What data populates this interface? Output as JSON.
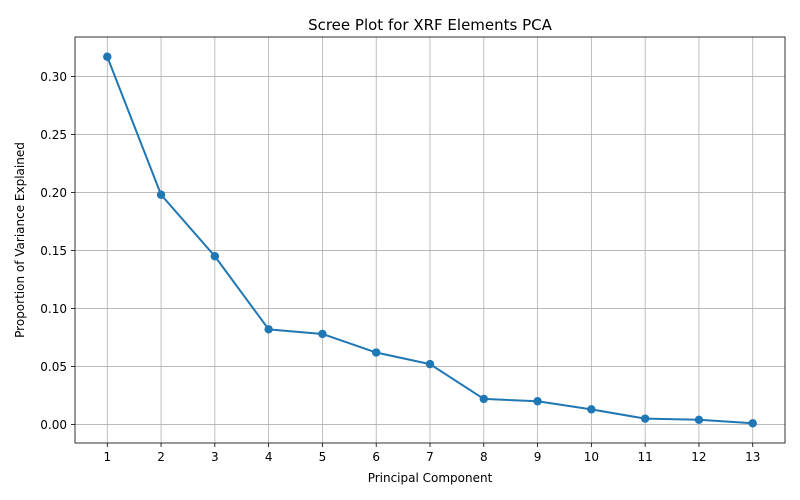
{
  "chart_data": {
    "type": "line",
    "title": "Scree Plot for XRF Elements PCA",
    "xlabel": "Principal Component",
    "ylabel": "Proportion of Variance Explained",
    "x": [
      1,
      2,
      3,
      4,
      5,
      6,
      7,
      8,
      9,
      10,
      11,
      12,
      13
    ],
    "series": [
      {
        "values": [
          0.317,
          0.198,
          0.145,
          0.082,
          0.078,
          0.062,
          0.052,
          0.022,
          0.02,
          0.013,
          0.005,
          0.004,
          0.001
        ],
        "color": "#1f77b4",
        "marker": "circle"
      }
    ],
    "xlim": [
      0.4,
      13.6
    ],
    "ylim": [
      -0.016,
      0.334
    ],
    "yticks": [
      0.0,
      0.05,
      0.1,
      0.15,
      0.2,
      0.25,
      0.3
    ],
    "ytick_labels": [
      "0.00",
      "0.05",
      "0.10",
      "0.15",
      "0.20",
      "0.25",
      "0.30"
    ],
    "xticks": [
      1,
      2,
      3,
      4,
      5,
      6,
      7,
      8,
      9,
      10,
      11,
      12,
      13
    ],
    "xtick_labels": [
      "1",
      "2",
      "3",
      "4",
      "5",
      "6",
      "7",
      "8",
      "9",
      "10",
      "11",
      "12",
      "13"
    ],
    "grid": true,
    "legend": "none"
  }
}
